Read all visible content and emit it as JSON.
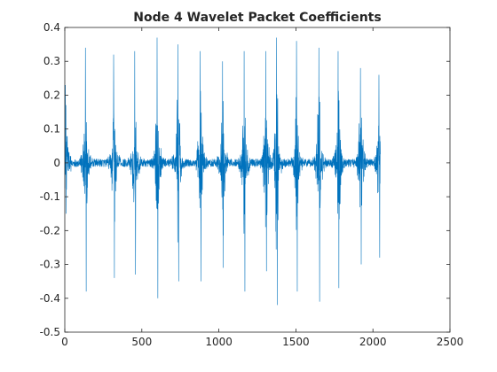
{
  "chart_data": {
    "type": "line",
    "title": "Node 4 Wavelet Packet Coefficients",
    "xlabel": "",
    "ylabel": "",
    "xlim": [
      0,
      2500
    ],
    "ylim": [
      -0.5,
      0.4
    ],
    "xticks": [
      0,
      500,
      1000,
      1500,
      2000,
      2500
    ],
    "xtick_labels": [
      "0",
      "500",
      "1000",
      "1500",
      "2000",
      "2500"
    ],
    "yticks": [
      -0.5,
      -0.4,
      -0.3,
      -0.2,
      -0.1,
      0,
      0.1,
      0.2,
      0.3,
      0.4
    ],
    "ytick_labels": [
      "-0.5",
      "-0.4",
      "-0.3",
      "-0.2",
      "-0.1",
      "0",
      "0.1",
      "0.2",
      "0.3",
      "0.4"
    ],
    "grid": false,
    "line_color": "#0072BD",
    "series": [
      {
        "n_points": 2048,
        "burst_centers": [
          5,
          135,
          318,
          455,
          600,
          735,
          880,
          1025,
          1165,
          1305,
          1375,
          1505,
          1650,
          1775,
          1920,
          2040
        ],
        "burst_peaks": [
          [
            0.23,
            -0.15
          ],
          [
            0.34,
            -0.38
          ],
          [
            0.32,
            -0.34
          ],
          [
            0.33,
            -0.33
          ],
          [
            0.37,
            -0.4
          ],
          [
            0.35,
            -0.35
          ],
          [
            0.33,
            -0.35
          ],
          [
            0.3,
            -0.31
          ],
          [
            0.33,
            -0.38
          ],
          [
            0.33,
            -0.32
          ],
          [
            0.37,
            -0.42
          ],
          [
            0.36,
            -0.38
          ],
          [
            0.34,
            -0.41
          ],
          [
            0.33,
            -0.37
          ],
          [
            0.28,
            -0.3
          ],
          [
            0.26,
            -0.28
          ]
        ]
      }
    ]
  }
}
